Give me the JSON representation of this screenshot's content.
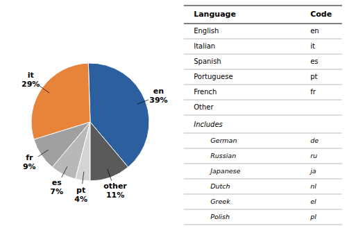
{
  "chart_data": {
    "type": "pie",
    "categories": [
      "en",
      "it",
      "fr",
      "es",
      "pt",
      "other"
    ],
    "values": [
      39,
      29,
      9,
      7,
      4,
      11
    ],
    "value_labels": [
      "39%",
      "29%",
      "9%",
      "7%",
      "4%",
      "11%"
    ],
    "colors": [
      "#2c5f9e",
      "#e8833a",
      "#a0a0a0",
      "#b8b8b8",
      "#d4d4d4",
      "#5a5a5a"
    ]
  },
  "table": {
    "header": [
      "Language",
      "Code"
    ],
    "rows": [
      [
        "English",
        "en"
      ],
      [
        "Italian",
        "it"
      ],
      [
        "Spanish",
        "es"
      ],
      [
        "Portuguese",
        "pt"
      ],
      [
        "French",
        "fr"
      ],
      [
        "Other"
      ]
    ],
    "sub_header": "Includes",
    "sub_rows": [
      [
        "German",
        "de"
      ],
      [
        "Russian",
        "ru"
      ],
      [
        "Japanese",
        "ja"
      ],
      [
        "Dutch",
        "nl"
      ],
      [
        "Greek",
        "el"
      ],
      [
        "Polish",
        "pl"
      ]
    ]
  }
}
